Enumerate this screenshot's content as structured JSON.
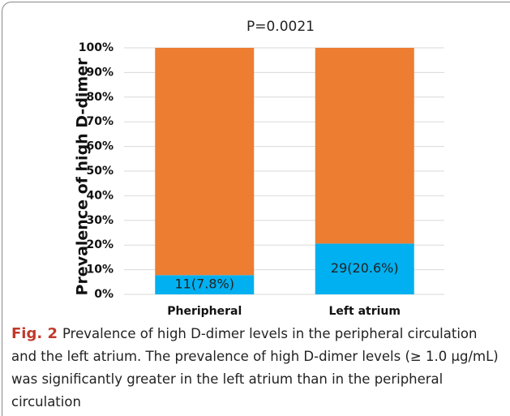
{
  "chart_data": {
    "type": "stacked_bar",
    "annotation": "P=0.0021",
    "ylabel": "Prevalence of high D-dimer",
    "categories": [
      "Pheripheral",
      "Left atrium"
    ],
    "series": [
      {
        "color": "#00b0f0",
        "values": [
          7.8,
          20.6
        ],
        "value_labels": [
          "11(7.8%)",
          "29(20.6%)"
        ]
      },
      {
        "color": "#ed7d31",
        "values": [
          92.2,
          79.4
        ]
      }
    ],
    "ylim": [
      0,
      100
    ],
    "yticks": [
      {
        "value": 0,
        "label": "0%"
      },
      {
        "value": 10,
        "label": "10%"
      },
      {
        "value": 20,
        "label": "20%"
      },
      {
        "value": 30,
        "label": "30%"
      },
      {
        "value": 40,
        "label": "40%"
      },
      {
        "value": 50,
        "label": "50%"
      },
      {
        "value": 60,
        "label": "60%"
      },
      {
        "value": 70,
        "label": "70%"
      },
      {
        "value": 80,
        "label": "80%"
      },
      {
        "value": 90,
        "label": "90%"
      },
      {
        "value": 100,
        "label": "100%"
      }
    ],
    "grid": true
  },
  "caption": {
    "label": "Fig. 2",
    "text": "Prevalence of high D-dimer levels in the peripheral circulation and the left atrium. The prevalence of high D-dimer levels (≥ 1.0 µg/mL) was significantly greater in the left atrium than in the peripheral circulation"
  }
}
